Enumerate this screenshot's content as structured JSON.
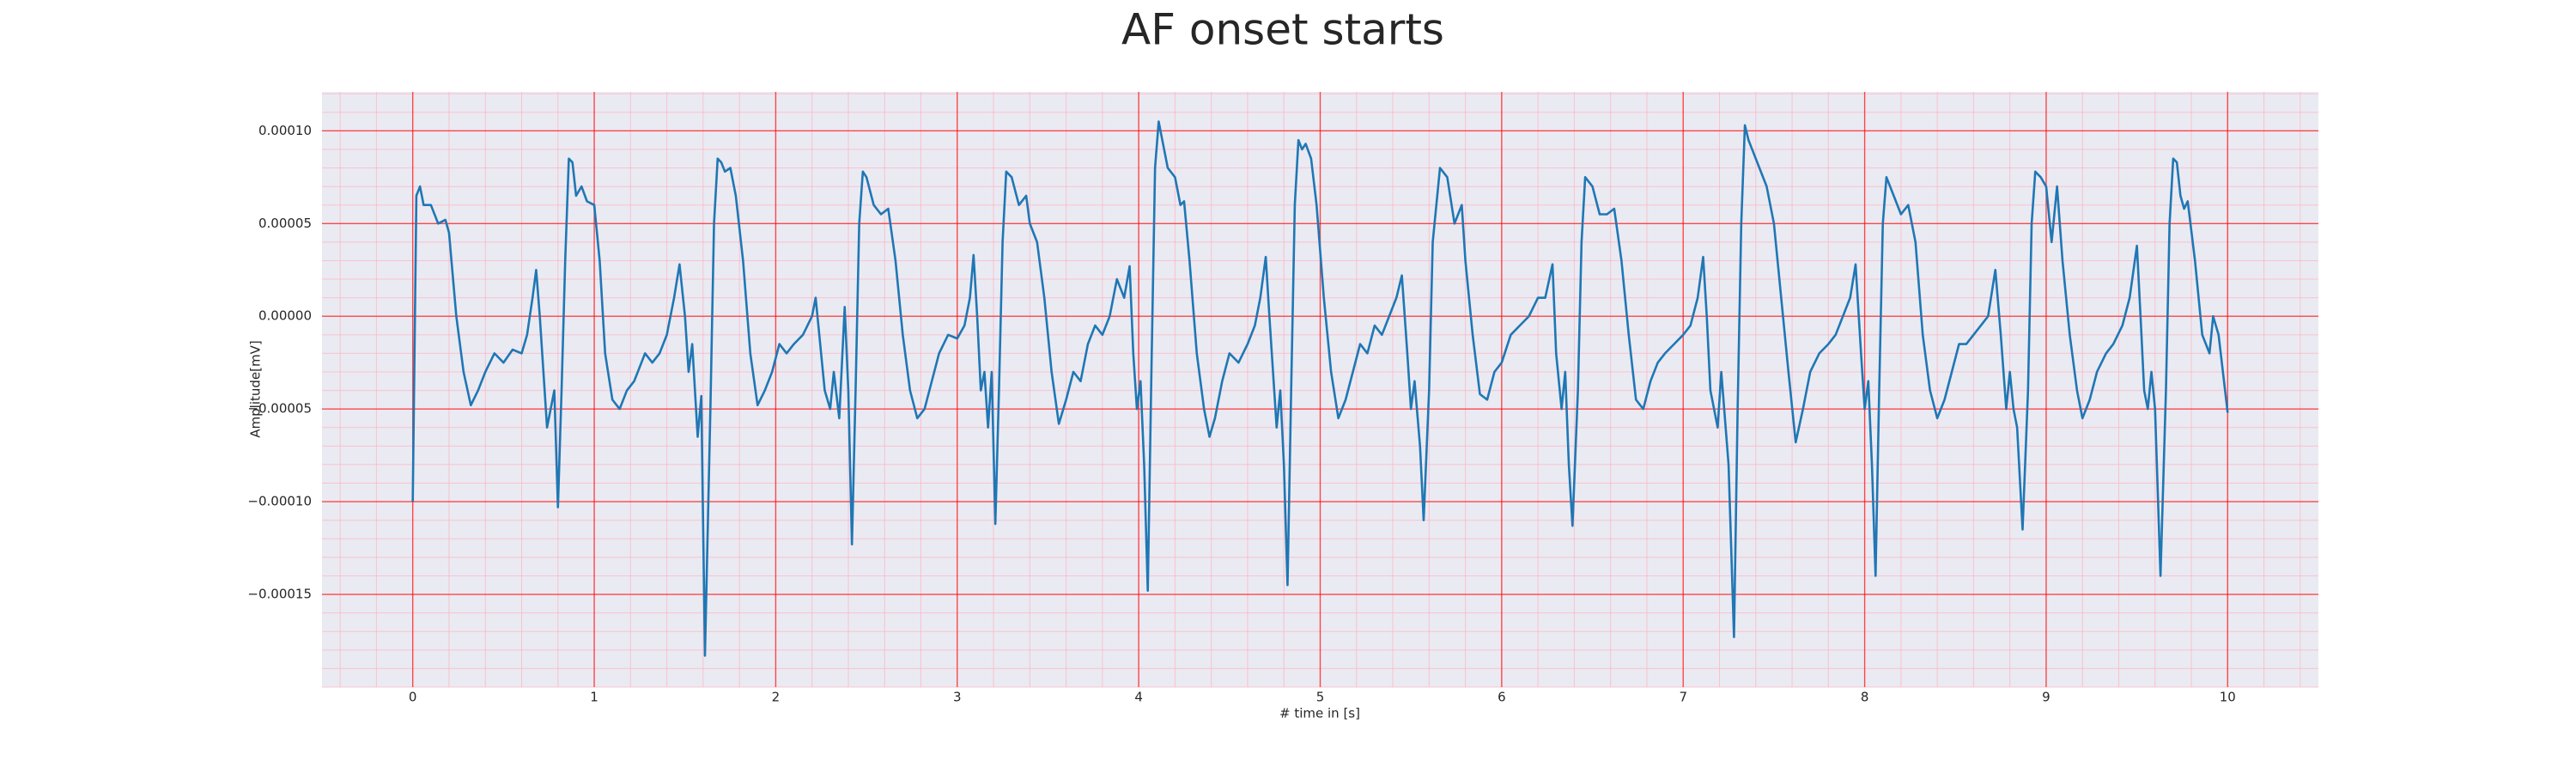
{
  "chart_data": {
    "type": "line",
    "title": "AF onset starts",
    "x_label": "# time in [s]",
    "y_label": "Amplitude[mV]",
    "xlim": [
      -0.5,
      10.5
    ],
    "ylim": [
      -0.0002,
      0.000121
    ],
    "xticks": [
      0,
      1,
      2,
      3,
      4,
      5,
      6,
      7,
      8,
      9,
      10
    ],
    "yticks": [
      {
        "value": -0.00015,
        "label": "−0.00015"
      },
      {
        "value": -0.0001,
        "label": "−0.00010"
      },
      {
        "value": -5e-05,
        "label": "−0.00005"
      },
      {
        "value": 0,
        "label": "0.00000"
      },
      {
        "value": 5e-05,
        "label": "0.00005"
      },
      {
        "value": 0.0001,
        "label": "0.00010"
      }
    ],
    "grid": true,
    "grid_color": "#ff0000",
    "minor_grid": {
      "x_step": 0.2,
      "y_step": 1e-05,
      "color": "#ffb0c0"
    },
    "background": "#eaeaf2",
    "series": [
      {
        "color": "#1f77b4",
        "x": [
          0,
          0.02,
          0.04,
          0.06,
          0.1,
          0.14,
          0.18,
          0.2,
          0.24,
          0.28,
          0.32,
          0.36,
          0.4,
          0.45,
          0.5,
          0.55,
          0.6,
          0.63,
          0.66,
          0.68,
          0.7,
          0.72,
          0.74,
          0.76,
          0.78,
          0.8,
          0.82,
          0.84,
          0.86,
          0.88,
          0.9,
          0.93,
          0.96,
          1.0,
          1.03,
          1.06,
          1.1,
          1.14,
          1.18,
          1.22,
          1.28,
          1.32,
          1.36,
          1.4,
          1.44,
          1.47,
          1.5,
          1.52,
          1.54,
          1.57,
          1.59,
          1.61,
          1.64,
          1.66,
          1.68,
          1.7,
          1.72,
          1.75,
          1.78,
          1.82,
          1.86,
          1.9,
          1.94,
          1.98,
          2.02,
          2.06,
          2.1,
          2.15,
          2.2,
          2.22,
          2.25,
          2.27,
          2.3,
          2.32,
          2.35,
          2.38,
          2.4,
          2.42,
          2.44,
          2.46,
          2.48,
          2.5,
          2.54,
          2.58,
          2.62,
          2.66,
          2.7,
          2.74,
          2.78,
          2.82,
          2.86,
          2.9,
          2.95,
          3.0,
          3.04,
          3.07,
          3.09,
          3.11,
          3.13,
          3.15,
          3.17,
          3.19,
          3.21,
          3.23,
          3.25,
          3.27,
          3.3,
          3.34,
          3.38,
          3.4,
          3.44,
          3.48,
          3.52,
          3.56,
          3.6,
          3.64,
          3.68,
          3.72,
          3.76,
          3.8,
          3.84,
          3.88,
          3.92,
          3.95,
          3.97,
          3.99,
          4.01,
          4.03,
          4.05,
          4.07,
          4.09,
          4.11,
          4.13,
          4.16,
          4.2,
          4.23,
          4.25,
          4.28,
          4.32,
          4.36,
          4.39,
          4.42,
          4.46,
          4.5,
          4.55,
          4.6,
          4.64,
          4.67,
          4.7,
          4.72,
          4.74,
          4.76,
          4.78,
          4.8,
          4.82,
          4.84,
          4.86,
          4.88,
          4.9,
          4.92,
          4.95,
          4.98,
          5.02,
          5.06,
          5.1,
          5.14,
          5.18,
          5.22,
          5.26,
          5.3,
          5.34,
          5.38,
          5.42,
          5.45,
          5.48,
          5.5,
          5.52,
          5.55,
          5.57,
          5.6,
          5.62,
          5.64,
          5.66,
          5.7,
          5.74,
          5.78,
          5.8,
          5.84,
          5.88,
          5.92,
          5.96,
          6.0,
          6.05,
          6.1,
          6.15,
          6.2,
          6.24,
          6.28,
          6.3,
          6.33,
          6.35,
          6.37,
          6.39,
          6.42,
          6.44,
          6.46,
          6.5,
          6.54,
          6.58,
          6.62,
          6.66,
          6.7,
          6.74,
          6.78,
          6.82,
          6.86,
          6.9,
          6.95,
          7.0,
          7.04,
          7.08,
          7.11,
          7.13,
          7.15,
          7.17,
          7.19,
          7.21,
          7.25,
          7.28,
          7.3,
          7.32,
          7.34,
          7.36,
          7.38,
          7.42,
          7.46,
          7.5,
          7.54,
          7.58,
          7.62,
          7.66,
          7.7,
          7.75,
          7.8,
          7.84,
          7.88,
          7.92,
          7.95,
          7.98,
          8.0,
          8.02,
          8.04,
          8.06,
          8.08,
          8.1,
          8.12,
          8.16,
          8.2,
          8.24,
          8.28,
          8.32,
          8.36,
          8.4,
          8.44,
          8.48,
          8.52,
          8.56,
          8.6,
          8.64,
          8.68,
          8.72,
          8.75,
          8.78,
          8.8,
          8.82,
          8.84,
          8.87,
          8.9,
          8.92,
          8.94,
          8.97,
          9.0,
          9.03,
          9.06,
          9.09,
          9.13,
          9.17,
          9.2,
          9.24,
          9.28,
          9.33,
          9.37,
          9.42,
          9.46,
          9.5,
          9.52,
          9.54,
          9.56,
          9.58,
          9.6,
          9.63,
          9.66,
          9.68,
          9.7,
          9.72,
          9.74,
          9.76,
          9.78,
          9.82,
          9.86,
          9.9,
          9.92,
          9.95,
          10.0
        ],
        "values": [
          -0.0001,
          6.5e-05,
          7e-05,
          6e-05,
          6e-05,
          5e-05,
          5.2e-05,
          4.5e-05,
          0,
          -3e-05,
          -4.8e-05,
          -4e-05,
          -3e-05,
          -2e-05,
          -2.5e-05,
          -1.8e-05,
          -2e-05,
          -1e-05,
          1e-05,
          2.5e-05,
          0,
          -3e-05,
          -6e-05,
          -5e-05,
          -4e-05,
          -0.000103,
          -4e-05,
          3e-05,
          8.5e-05,
          8.3e-05,
          6.5e-05,
          7e-05,
          6.2e-05,
          6e-05,
          3e-05,
          -2e-05,
          -4.5e-05,
          -5e-05,
          -4e-05,
          -3.5e-05,
          -2e-05,
          -2.5e-05,
          -2e-05,
          -1e-05,
          1e-05,
          2.8e-05,
          0,
          -3e-05,
          -1.5e-05,
          -6.5e-05,
          -4.3e-05,
          -0.000183,
          -5e-05,
          5e-05,
          8.5e-05,
          8.3e-05,
          7.8e-05,
          8e-05,
          6.5e-05,
          3e-05,
          -2e-05,
          -4.8e-05,
          -4e-05,
          -3e-05,
          -1.5e-05,
          -2e-05,
          -1.5e-05,
          -1e-05,
          0,
          1e-05,
          -2e-05,
          -4e-05,
          -5e-05,
          -3e-05,
          -5.5e-05,
          5e-06,
          -4e-05,
          -0.000123,
          -4e-05,
          5e-05,
          7.8e-05,
          7.5e-05,
          6e-05,
          5.5e-05,
          5.8e-05,
          3e-05,
          -1e-05,
          -4e-05,
          -5.5e-05,
          -5e-05,
          -3.5e-05,
          -2e-05,
          -1e-05,
          -1.2e-05,
          -5e-06,
          1e-05,
          3.3e-05,
          0,
          -4e-05,
          -3e-05,
          -6e-05,
          -3e-05,
          -0.000112,
          -4e-05,
          4e-05,
          7.8e-05,
          7.5e-05,
          6e-05,
          6.5e-05,
          5e-05,
          4e-05,
          1e-05,
          -3e-05,
          -5.8e-05,
          -4.5e-05,
          -3e-05,
          -3.5e-05,
          -1.5e-05,
          -5e-06,
          -1e-05,
          0,
          2e-05,
          1e-05,
          2.7e-05,
          -2e-05,
          -5e-05,
          -3.5e-05,
          -8e-05,
          -0.000148,
          -3e-05,
          8e-05,
          0.000105,
          9.5e-05,
          8e-05,
          7.5e-05,
          6e-05,
          6.2e-05,
          3e-05,
          -2e-05,
          -5e-05,
          -6.5e-05,
          -5.5e-05,
          -3.5e-05,
          -2e-05,
          -2.5e-05,
          -1.5e-05,
          -5e-06,
          1e-05,
          3.2e-05,
          0,
          -3e-05,
          -6e-05,
          -4e-05,
          -8e-05,
          -0.000145,
          -4e-05,
          6e-05,
          9.5e-05,
          9e-05,
          9.3e-05,
          8.5e-05,
          6e-05,
          1e-05,
          -3e-05,
          -5.5e-05,
          -4.5e-05,
          -3e-05,
          -1.5e-05,
          -2e-05,
          -5e-06,
          -1e-05,
          0,
          1e-05,
          2.2e-05,
          -2e-05,
          -5e-05,
          -3.5e-05,
          -7e-05,
          -0.00011,
          -4e-05,
          4e-05,
          6e-05,
          8e-05,
          7.5e-05,
          5e-05,
          6e-05,
          3e-05,
          -1e-05,
          -4.2e-05,
          -4.5e-05,
          -3e-05,
          -2.5e-05,
          -1e-05,
          -5e-06,
          0,
          1e-05,
          1e-05,
          2.8e-05,
          -2e-05,
          -5e-05,
          -3e-05,
          -8e-05,
          -0.000113,
          -4e-05,
          4e-05,
          7.5e-05,
          7e-05,
          5.5e-05,
          5.5e-05,
          5.8e-05,
          3e-05,
          -1e-05,
          -4.5e-05,
          -5e-05,
          -3.5e-05,
          -2.5e-05,
          -2e-05,
          -1.5e-05,
          -1e-05,
          -5e-06,
          1e-05,
          3.2e-05,
          0,
          -4e-05,
          -5e-05,
          -6e-05,
          -3e-05,
          -8e-05,
          -0.000173,
          -5e-05,
          5e-05,
          0.000103,
          9.5e-05,
          9e-05,
          8e-05,
          7e-05,
          5e-05,
          1e-05,
          -3e-05,
          -6.8e-05,
          -5e-05,
          -3e-05,
          -2e-05,
          -1.5e-05,
          -1e-05,
          0,
          1e-05,
          2.8e-05,
          -2e-05,
          -5e-05,
          -3.5e-05,
          -8e-05,
          -0.00014,
          -4e-05,
          5e-05,
          7.5e-05,
          6.5e-05,
          5.5e-05,
          6e-05,
          4e-05,
          -1e-05,
          -4e-05,
          -5.5e-05,
          -4.5e-05,
          -3e-05,
          -1.5e-05,
          -1.5e-05,
          -1e-05,
          -5e-06,
          0,
          2.5e-05,
          -1e-05,
          -5e-05,
          -3e-05,
          -5e-05,
          -6e-05,
          -0.000115,
          -4e-05,
          5e-05,
          7.8e-05,
          7.5e-05,
          7e-05,
          4e-05,
          7e-05,
          3e-05,
          -1e-05,
          -4e-05,
          -5.5e-05,
          -4.5e-05,
          -3e-05,
          -2e-05,
          -1.5e-05,
          -5e-06,
          1e-05,
          3.8e-05,
          0,
          -4e-05,
          -5e-05,
          -3e-05,
          -5e-05,
          -0.00014,
          -4e-05,
          5e-05,
          8.5e-05,
          8.3e-05,
          6.5e-05,
          5.8e-05,
          6.2e-05,
          3e-05,
          -1e-05,
          -2e-05,
          0,
          -1e-05,
          -5.2e-05
        ]
      }
    ]
  }
}
